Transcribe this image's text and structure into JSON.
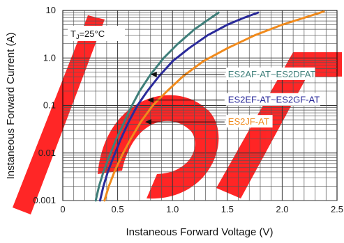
{
  "chart_data": {
    "type": "line",
    "x_scale": "linear",
    "y_scale": "log",
    "xlim": [
      0,
      2.5
    ],
    "ylim": [
      0.001,
      10
    ],
    "xlabel": "Instaneous Forward Voltage (V)",
    "ylabel": "Instaneous Forward Current (A)",
    "x_ticks": [
      {
        "value": 0,
        "label": "0"
      },
      {
        "value": 0.5,
        "label": "0.5"
      },
      {
        "value": 1.0,
        "label": "1.0"
      },
      {
        "value": 1.5,
        "label": "1.5"
      },
      {
        "value": 2.0,
        "label": "2.0"
      },
      {
        "value": 2.5,
        "label": "2.5"
      }
    ],
    "y_ticks": [
      {
        "value": 0.001,
        "label": "0.001"
      },
      {
        "value": 0.01,
        "label": "0.01"
      },
      {
        "value": 0.1,
        "label": "0.1"
      },
      {
        "value": 1,
        "label": "1.0"
      },
      {
        "value": 10,
        "label": "10"
      }
    ],
    "grid": true,
    "annotation": {
      "T": "T",
      "sub": "J",
      "rest": "=25°C"
    },
    "series": [
      {
        "name": "ES2AF-AT~ES2DFAT",
        "color": "#3f7f7a",
        "x": [
          0.3,
          0.33,
          0.37,
          0.42,
          0.48,
          0.55,
          0.62,
          0.7,
          0.8,
          0.92,
          1.05,
          1.2,
          1.35,
          1.42
        ],
        "y": [
          0.001,
          0.002,
          0.004,
          0.008,
          0.018,
          0.04,
          0.09,
          0.2,
          0.45,
          1.0,
          2.0,
          4.0,
          7.0,
          9.0
        ]
      },
      {
        "name": "ES2EF-AT~ES2GF-AT",
        "color": "#2a2a9a",
        "x": [
          0.34,
          0.37,
          0.41,
          0.46,
          0.53,
          0.6,
          0.68,
          0.77,
          0.88,
          1.0,
          1.15,
          1.32,
          1.5,
          1.65,
          1.78
        ],
        "y": [
          0.001,
          0.002,
          0.004,
          0.008,
          0.02,
          0.045,
          0.1,
          0.2,
          0.42,
          0.85,
          1.6,
          3.0,
          5.0,
          7.0,
          9.0
        ]
      },
      {
        "name": "ES2JF-AT",
        "color": "#f08a1c",
        "x": [
          0.38,
          0.42,
          0.47,
          0.54,
          0.62,
          0.71,
          0.82,
          0.95,
          1.1,
          1.28,
          1.5,
          1.75,
          2.0,
          2.2,
          2.38
        ],
        "y": [
          0.001,
          0.002,
          0.004,
          0.009,
          0.02,
          0.045,
          0.1,
          0.2,
          0.42,
          0.85,
          1.6,
          3.0,
          5.0,
          7.0,
          9.5
        ]
      }
    ],
    "callouts": [
      {
        "series_index": 0,
        "text": "ES2AF-AT~ES2DFAT",
        "point": [
          0.8,
          0.45
        ],
        "label_at": [
          1.5,
          0.45
        ],
        "label_color": "#3f7f7a"
      },
      {
        "series_index": 1,
        "text": "ES2EF-AT~ES2GF-AT",
        "point": [
          0.77,
          0.13
        ],
        "label_at": [
          1.5,
          0.13
        ],
        "label_color": "#2a2a9a"
      },
      {
        "series_index": 2,
        "text": "ES2JF-AT",
        "point": [
          0.75,
          0.045
        ],
        "label_at": [
          1.5,
          0.045
        ],
        "label_color": "#f08a1c"
      }
    ],
    "watermark_color": "#ff1a1a"
  }
}
